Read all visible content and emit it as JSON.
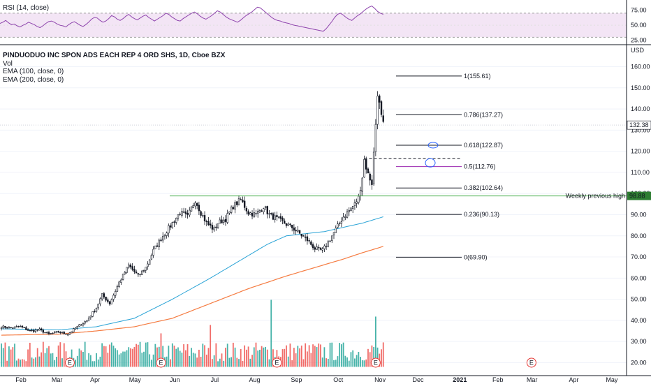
{
  "chart_data": {
    "type": "candlestick",
    "symbol_title": "PINDUODUO INC SPON ADS EACH REP 4 ORD SHS, 1D, Cboe BZX",
    "indicators": [
      "Vol",
      "EMA (100, close, 0)",
      "EMA (200, close, 0)"
    ],
    "currency": "USD",
    "y_axis": {
      "ticks": [
        20,
        30,
        40,
        50,
        60,
        70,
        80,
        90,
        100,
        110,
        120,
        130,
        140,
        150,
        160
      ],
      "tick_labels": [
        "20.00",
        "30.00",
        "40.00",
        "50.00",
        "60.00",
        "70.00",
        "80.00",
        "90.00",
        "100.00",
        "110.00",
        "120.00",
        "130.00",
        "140.00",
        "150.00",
        "160.00"
      ],
      "range": [
        17,
        165
      ],
      "current_price_label": "132.38",
      "current_price": 132.38,
      "level_label": "98.88",
      "level_price": 98.88
    },
    "x_axis": {
      "labels": [
        "Feb",
        "Mar",
        "Apr",
        "May",
        "Jun",
        "Jul",
        "Aug",
        "Sep",
        "Oct",
        "Nov",
        "Dec",
        "2021",
        "Feb",
        "Mar",
        "Apr",
        "May"
      ],
      "label_positions_day": [
        0,
        19,
        39,
        60,
        81,
        102,
        123,
        145,
        167,
        189,
        209,
        231,
        251,
        269,
        291,
        311
      ]
    },
    "price_anchors": [
      [
        0,
        37
      ],
      [
        5,
        36.5
      ],
      [
        10,
        37
      ],
      [
        15,
        35
      ],
      [
        20,
        35.5
      ],
      [
        25,
        33.5
      ],
      [
        30,
        34.5
      ],
      [
        35,
        33.5
      ],
      [
        40,
        37
      ],
      [
        45,
        40
      ],
      [
        50,
        46
      ],
      [
        53,
        52
      ],
      [
        57,
        48
      ],
      [
        62,
        58
      ],
      [
        67,
        66
      ],
      [
        72,
        61
      ],
      [
        76,
        65
      ],
      [
        80,
        73
      ],
      [
        85,
        80
      ],
      [
        90,
        86
      ],
      [
        94,
        91
      ],
      [
        98,
        89
      ],
      [
        102,
        97
      ],
      [
        105,
        91
      ],
      [
        108,
        86
      ],
      [
        112,
        83
      ],
      [
        114,
        86
      ],
      [
        118,
        88
      ],
      [
        122,
        94
      ],
      [
        126,
        97
      ],
      [
        130,
        91
      ],
      [
        134,
        90
      ],
      [
        138,
        94
      ],
      [
        141,
        90
      ],
      [
        145,
        88
      ],
      [
        149,
        86
      ],
      [
        153,
        84
      ],
      [
        157,
        81
      ],
      [
        161,
        78
      ],
      [
        165,
        74
      ],
      [
        169,
        73
      ],
      [
        172,
        77
      ],
      [
        176,
        83
      ],
      [
        180,
        89
      ],
      [
        183,
        92
      ],
      [
        186,
        95
      ],
      [
        188,
        98
      ],
      [
        190,
        108
      ],
      [
        191,
        116
      ],
      [
        193,
        109
      ],
      [
        195,
        105
      ],
      [
        197,
        133
      ],
      [
        198,
        148
      ],
      [
        199,
        142
      ],
      [
        200,
        136
      ],
      [
        201,
        132.38
      ]
    ],
    "ema100_anchors": [
      [
        0,
        36
      ],
      [
        30,
        35.5
      ],
      [
        50,
        37
      ],
      [
        70,
        41
      ],
      [
        90,
        50
      ],
      [
        110,
        60
      ],
      [
        125,
        68
      ],
      [
        140,
        76
      ],
      [
        150,
        80
      ],
      [
        160,
        81
      ],
      [
        170,
        82
      ],
      [
        180,
        84
      ],
      [
        190,
        86
      ],
      [
        201,
        89
      ]
    ],
    "ema200_anchors": [
      [
        0,
        33
      ],
      [
        30,
        33.5
      ],
      [
        50,
        35
      ],
      [
        70,
        37
      ],
      [
        90,
        41
      ],
      [
        110,
        48
      ],
      [
        130,
        55
      ],
      [
        150,
        61
      ],
      [
        165,
        65
      ],
      [
        180,
        69
      ],
      [
        190,
        72
      ],
      [
        201,
        75
      ]
    ],
    "volume": {
      "note": "volume bars shown at bottom, relative heights",
      "spikes_day": [
        84,
        110,
        142,
        197
      ],
      "spike_levels": [
        0.4,
        0.5,
        0.8,
        0.6
      ]
    },
    "earnings_markers": {
      "label": "E",
      "days": [
        36,
        84,
        145,
        197,
        279
      ]
    },
    "fibonacci": [
      {
        "ratio_label": "1(155.61)",
        "value": 155.61,
        "color": "#131722"
      },
      {
        "ratio_label": "0.786(137.27)",
        "value": 137.27,
        "color": "#131722"
      },
      {
        "ratio_label": "0.618(122.87)",
        "value": 122.87,
        "color": "#131722"
      },
      {
        "ratio_label": "0.5(112.76)",
        "value": 112.76,
        "color": "#9c27b0"
      },
      {
        "ratio_label": "0.382(102.64)",
        "value": 102.64,
        "color": "#131722"
      },
      {
        "ratio_label": "0.236(90.13)",
        "value": 90.13,
        "color": "#131722"
      },
      {
        "ratio_label": "0(69.90)",
        "value": 69.9,
        "color": "#131722"
      }
    ],
    "horizontal_line": {
      "label": "Weekly previous high",
      "value": 98.88,
      "color": "#4caf50"
    },
    "dashed_line_value": 116.5,
    "rsi": {
      "title": "RSI (14, close)",
      "ticks": [
        25,
        50,
        75
      ],
      "tick_labels": [
        "25.00",
        "50.00",
        "75.00"
      ],
      "upper_band": 70,
      "lower_band": 30,
      "values": [
        53,
        55,
        58,
        54,
        51,
        52,
        49,
        47,
        50,
        52,
        55,
        53,
        51,
        48,
        46,
        49,
        53,
        56,
        57,
        55,
        52,
        50,
        49,
        47,
        51,
        54,
        56,
        53,
        50,
        48,
        51,
        55,
        60,
        63,
        62,
        58,
        55,
        57,
        61,
        66,
        64,
        60,
        58,
        61,
        65,
        68,
        64,
        61,
        59,
        62,
        65,
        67,
        63,
        60,
        57,
        60,
        63,
        66,
        70,
        68,
        64,
        61,
        58,
        57,
        61,
        64,
        67,
        70,
        72,
        69,
        65,
        62,
        60,
        63,
        66,
        70,
        74,
        72,
        68,
        64,
        61,
        59,
        57,
        55,
        58,
        62,
        66,
        69,
        72,
        76,
        80,
        79,
        75,
        71,
        67,
        63,
        60,
        58,
        57,
        55,
        54,
        53,
        51,
        50,
        49,
        48,
        47,
        46,
        45,
        44,
        43,
        42,
        41,
        40,
        44,
        50,
        56,
        63,
        68,
        70,
        67,
        63,
        60,
        58,
        62,
        66,
        69,
        73,
        77,
        80,
        82,
        78,
        73,
        70,
        68
      ]
    },
    "colors": {
      "up": "#26a69a",
      "down": "#131722",
      "vol_up": "#26a69a",
      "vol_down": "#ef5350",
      "ema100": "#29a3d6",
      "ema200": "#f57c42",
      "rsi_line": "#8e44ad",
      "rsi_band_fill": "#f3e5f5",
      "fib_circle": "#2962ff",
      "earnings": "#e53935"
    }
  }
}
